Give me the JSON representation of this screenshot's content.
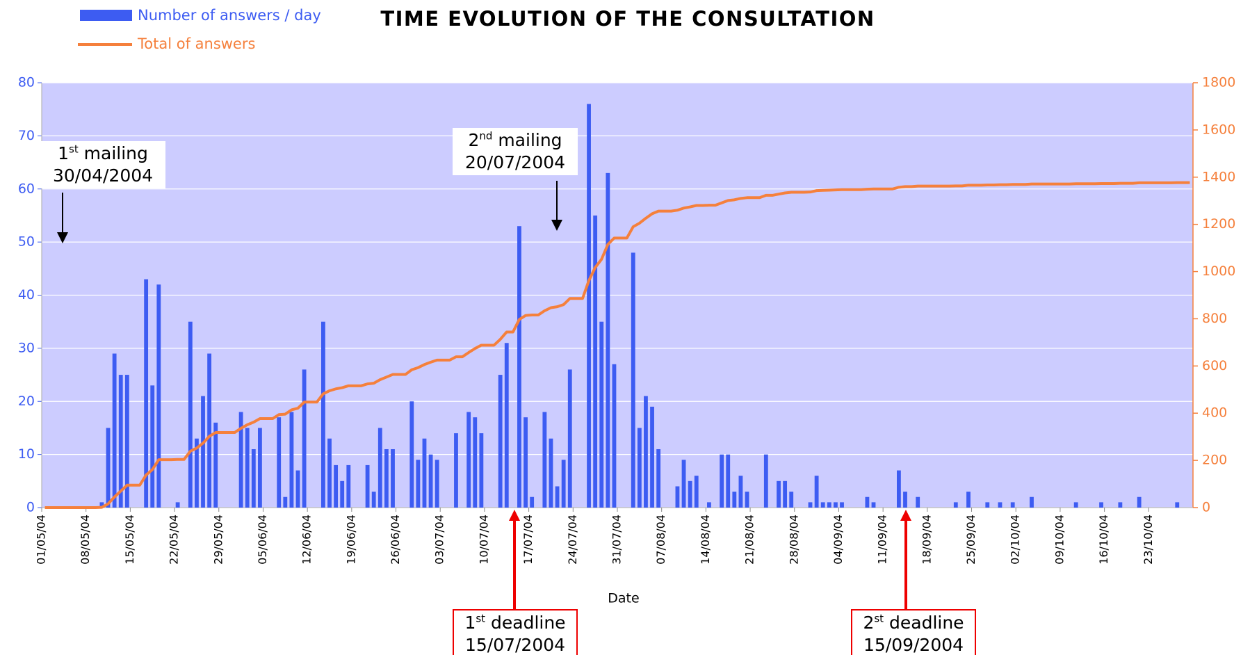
{
  "chart_data": {
    "type": "bar_line",
    "title": "TIME EVOLUTION OF THE CONSULTATION",
    "x_label": "Date",
    "categories": [
      "01/05/04",
      null,
      null,
      null,
      null,
      null,
      null,
      "08/05/04",
      null,
      null,
      null,
      null,
      null,
      null,
      "15/05/04",
      null,
      null,
      null,
      null,
      null,
      null,
      "22/05/04",
      null,
      null,
      null,
      null,
      null,
      null,
      "29/05/04",
      null,
      null,
      null,
      null,
      null,
      null,
      "05/06/04",
      null,
      null,
      null,
      null,
      null,
      null,
      "12/06/04",
      null,
      null,
      null,
      null,
      null,
      null,
      "19/06/04",
      null,
      null,
      null,
      null,
      null,
      null,
      "26/06/04",
      null,
      null,
      null,
      null,
      null,
      null,
      "03/07/04",
      null,
      null,
      null,
      null,
      null,
      null,
      "10/07/04",
      null,
      null,
      null,
      null,
      null,
      null,
      "17/07/04",
      null,
      null,
      null,
      null,
      null,
      null,
      "24/07/04",
      null,
      null,
      null,
      null,
      null,
      null,
      "31/07/04",
      null,
      null,
      null,
      null,
      null,
      null,
      "07/08/04",
      null,
      null,
      null,
      null,
      null,
      null,
      "14/08/04",
      null,
      null,
      null,
      null,
      null,
      null,
      "21/08/04",
      null,
      null,
      null,
      null,
      null,
      null,
      "28/08/04",
      null,
      null,
      null,
      null,
      null,
      null,
      "04/09/04",
      null,
      null,
      null,
      null,
      null,
      null,
      "11/09/04",
      null,
      null,
      null,
      null,
      null,
      null,
      "18/09/04",
      null,
      null,
      null,
      null,
      null,
      null,
      "25/09/04",
      null,
      null,
      null,
      null,
      null,
      null,
      "02/10/04",
      null,
      null,
      null,
      null,
      null,
      null,
      "09/10/04",
      null,
      null,
      null,
      null,
      null,
      null,
      "16/10/04",
      null,
      null,
      null,
      null,
      null,
      null,
      "23/10/04",
      null,
      null,
      null,
      null,
      null,
      null
    ],
    "series": [
      {
        "name": "Number of answers / day",
        "color": "#3d5cf2",
        "type": "bar",
        "axis": "y",
        "values": [
          0,
          0,
          0,
          0,
          0,
          0,
          0,
          0,
          0,
          1,
          15,
          29,
          25,
          25,
          0,
          0,
          43,
          23,
          42,
          0,
          0,
          1,
          0,
          35,
          13,
          21,
          29,
          16,
          0,
          0,
          0,
          18,
          15,
          11,
          15,
          0,
          0,
          17,
          2,
          18,
          7,
          26,
          0,
          0,
          35,
          13,
          8,
          5,
          8,
          0,
          0,
          8,
          3,
          15,
          11,
          11,
          0,
          0,
          20,
          9,
          13,
          10,
          9,
          0,
          0,
          14,
          0,
          18,
          17,
          14,
          0,
          0,
          25,
          31,
          0,
          53,
          17,
          2,
          0,
          18,
          13,
          4,
          9,
          26,
          0,
          0,
          76,
          55,
          35,
          63,
          27,
          0,
          0,
          48,
          15,
          21,
          19,
          11,
          0,
          0,
          4,
          9,
          5,
          6,
          0,
          1,
          0,
          10,
          10,
          3,
          6,
          3,
          0,
          0,
          10,
          0,
          5,
          5,
          3,
          0,
          0,
          1,
          6,
          1,
          1,
          1,
          1,
          0,
          0,
          0,
          2,
          1,
          0,
          0,
          0,
          7,
          3,
          0,
          2,
          0,
          0,
          0,
          0,
          0,
          1,
          0,
          3,
          0,
          0,
          1,
          0,
          1,
          0,
          1,
          0,
          0,
          2,
          0,
          0,
          0,
          0,
          0,
          0,
          1,
          0,
          0,
          0,
          1,
          0,
          0,
          1,
          0,
          0,
          2,
          0,
          0,
          0,
          0,
          0,
          1,
          0,
          0
        ]
      },
      {
        "name": "Total of answers",
        "color": "#f5803c",
        "type": "line",
        "axis": "y2",
        "values": [
          0,
          0,
          0,
          0,
          0,
          0,
          0,
          0,
          0,
          1,
          16,
          45,
          70,
          95,
          95,
          95,
          138,
          161,
          203,
          203,
          203,
          204,
          204,
          239,
          252,
          273,
          302,
          318,
          318,
          318,
          318,
          336,
          351,
          362,
          377,
          377,
          377,
          394,
          396,
          414,
          421,
          447,
          447,
          447,
          482,
          495,
          503,
          508,
          516,
          516,
          516,
          524,
          527,
          542,
          553,
          564,
          564,
          564,
          584,
          593,
          606,
          616,
          625,
          625,
          625,
          639,
          639,
          657,
          674,
          688,
          688,
          688,
          713,
          744,
          744,
          797,
          814,
          816,
          816,
          834,
          847,
          851,
          860,
          886,
          886,
          886,
          962,
          1017,
          1052,
          1115,
          1142,
          1142,
          1142,
          1190,
          1205,
          1226,
          1245,
          1256,
          1256,
          1256,
          1260,
          1269,
          1274,
          1280,
          1280,
          1281,
          1281,
          1291,
          1301,
          1304,
          1310,
          1313,
          1313,
          1313,
          1323,
          1323,
          1328,
          1333,
          1336,
          1336,
          1336,
          1337,
          1343,
          1344,
          1345,
          1346,
          1347,
          1347,
          1347,
          1347,
          1349,
          1350,
          1350,
          1350,
          1350,
          1357,
          1360,
          1360,
          1362,
          1362,
          1362,
          1362,
          1362,
          1362,
          1363,
          1363,
          1366,
          1366,
          1366,
          1367,
          1367,
          1368,
          1368,
          1369,
          1369,
          1369,
          1371,
          1371,
          1371,
          1371,
          1371,
          1371,
          1371,
          1372,
          1372,
          1372,
          1372,
          1373,
          1373,
          1373,
          1374,
          1374,
          1374,
          1376,
          1376,
          1376,
          1376,
          1376,
          1376,
          1377,
          1377,
          1377
        ]
      }
    ],
    "ylim": [
      0,
      80
    ],
    "yticks": [
      0,
      10,
      20,
      30,
      40,
      50,
      60,
      70,
      80
    ],
    "y2lim": [
      0,
      1800
    ],
    "y2ticks": [
      0,
      200,
      400,
      600,
      800,
      1000,
      1200,
      1400,
      1600,
      1800
    ],
    "grid": true,
    "annotations": [
      {
        "ordinal": "1",
        "suffix": "st",
        "text": "mailing",
        "date": "30/04/2004"
      },
      {
        "ordinal": "2",
        "suffix": "nd",
        "text": "mailing",
        "date": "20/07/2004"
      },
      {
        "ordinal": "1",
        "suffix": "st",
        "text": "deadline",
        "date": "15/07/2004"
      },
      {
        "ordinal": "2",
        "suffix": "st",
        "text": "deadline",
        "date": "15/09/2004"
      }
    ]
  }
}
